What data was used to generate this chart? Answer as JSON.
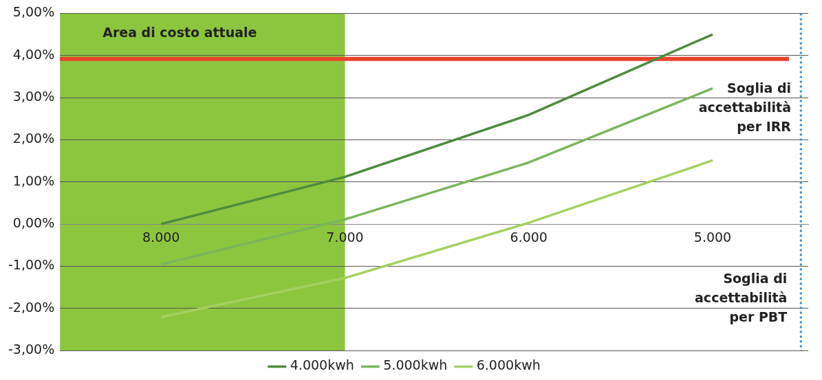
{
  "chart_data": {
    "type": "line",
    "x": [
      8000,
      7000,
      6000,
      5000
    ],
    "xlim": [
      8550,
      4480
    ],
    "xticks": [
      {
        "value": 8000,
        "label": "8.000"
      },
      {
        "value": 7000,
        "label": "7.000"
      },
      {
        "value": 6000,
        "label": "6.000"
      },
      {
        "value": 5000,
        "label": "5.000"
      }
    ],
    "ylim": [
      -3,
      5
    ],
    "yticks": [
      {
        "value": -3,
        "label": "-3,00%"
      },
      {
        "value": -2,
        "label": "-2,00%"
      },
      {
        "value": -1,
        "label": "-1,00%"
      },
      {
        "value": 0,
        "label": "0,00%"
      },
      {
        "value": 1,
        "label": "1,00%"
      },
      {
        "value": 2,
        "label": "2,00%"
      },
      {
        "value": 3,
        "label": "3,00%"
      },
      {
        "value": 4,
        "label": "4,00%"
      },
      {
        "value": 5,
        "label": "5,00%"
      }
    ],
    "series": [
      {
        "name": "4.000kwh",
        "color": "#4e8a3e",
        "values": [
          0.0,
          1.12,
          2.59,
          4.5
        ]
      },
      {
        "name": "5.000kwh",
        "color": "#7ab55c",
        "values": [
          -0.96,
          0.11,
          1.46,
          3.22
        ]
      },
      {
        "name": "6.000kwh",
        "color": "#a6d062",
        "values": [
          -2.21,
          -1.28,
          0.03,
          1.51
        ]
      }
    ],
    "bands": [
      {
        "axis": "x",
        "from": 8550,
        "to": 7000,
        "label": "Area di costo attuale",
        "color": "#8cc63f"
      }
    ],
    "ref_lines": [
      {
        "axis": "y",
        "value": 3.92,
        "label": "Soglia di accettabilità per IRR",
        "color": "#e8432e",
        "line_style": "solid"
      },
      {
        "axis": "x",
        "value": 4520,
        "label": "Soglia di accettabilità per PBT",
        "color": "#2e8fd6",
        "line_style": "dotted"
      }
    ],
    "grid": "y",
    "legend": "bottom",
    "marker": "none",
    "line_style": "solid"
  }
}
